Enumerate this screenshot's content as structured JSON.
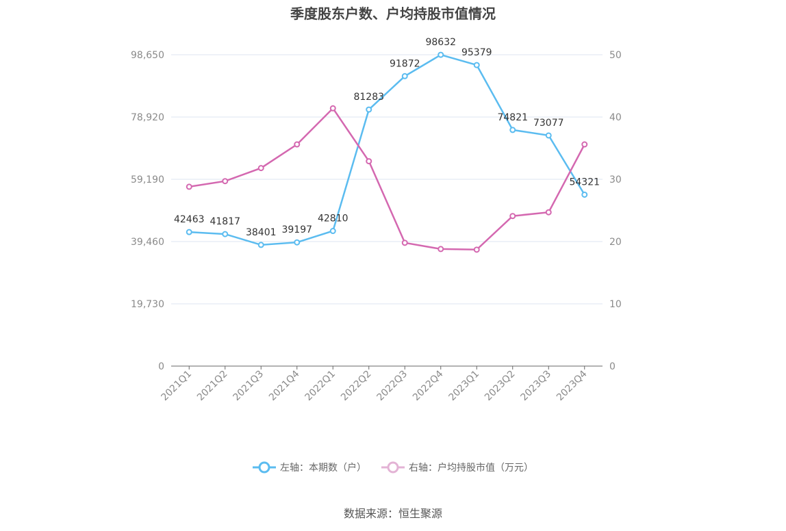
{
  "title": "季度股东户数、户均持股市值情况",
  "source": "数据来源：恒生聚源",
  "colors": {
    "left_series": "#5bbcf0",
    "right_series": "#d468b0",
    "grid": "#dde6f0",
    "axis": "#666666"
  },
  "chart_data": {
    "type": "line",
    "categories": [
      "2021Q1",
      "2021Q2",
      "2021Q3",
      "2021Q4",
      "2022Q1",
      "2022Q2",
      "2022Q3",
      "2022Q4",
      "2023Q1",
      "2023Q2",
      "2023Q3",
      "2023Q4"
    ],
    "left_axis": {
      "ylim": [
        0,
        98650
      ],
      "ticks": [
        "0",
        "19,730",
        "39,460",
        "59,190",
        "78,920",
        "98,650"
      ]
    },
    "right_axis": {
      "ylim": [
        0,
        50
      ],
      "ticks": [
        "0",
        "10",
        "20",
        "30",
        "40",
        "50"
      ]
    },
    "grid": true,
    "legend_position": "bottom",
    "series": [
      {
        "name": "左轴：本期数（户）",
        "axis": "left",
        "values": [
          42463,
          41817,
          38401,
          39197,
          42810,
          81283,
          91872,
          98632,
          95379,
          74821,
          73077,
          54321
        ],
        "labels": [
          "42463",
          "41817",
          "38401",
          "39197",
          "42810",
          "81283",
          "91872",
          "98632",
          "95379",
          "74821",
          "73077",
          "54321"
        ]
      },
      {
        "name": "右轴：户均持股市值（万元）",
        "axis": "right",
        "values": [
          28.8,
          29.7,
          31.8,
          35.6,
          41.4,
          32.9,
          19.8,
          18.8,
          18.7,
          24.1,
          24.7,
          35.6
        ]
      }
    ]
  }
}
